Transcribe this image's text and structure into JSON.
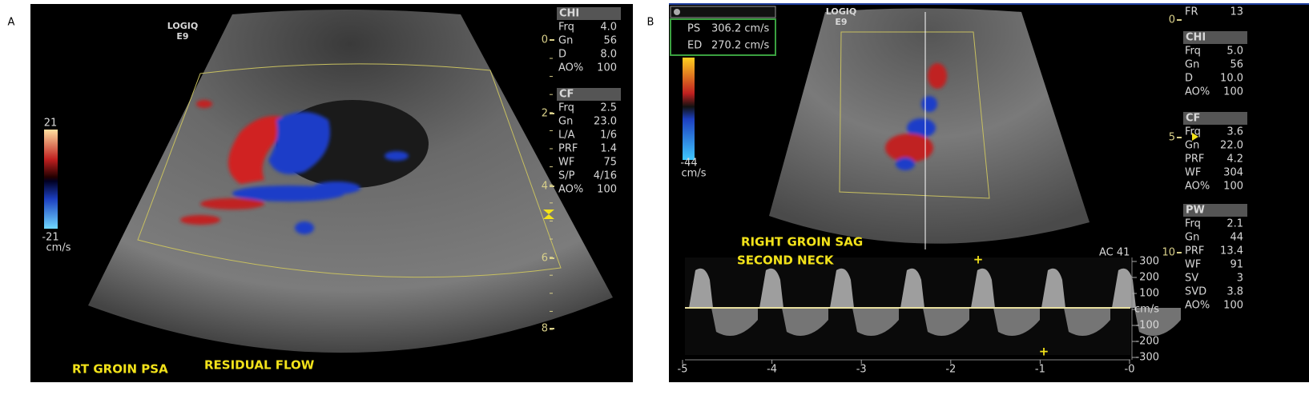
{
  "panel_a": {
    "label": "A",
    "logo": [
      "LOGIQ",
      "E9"
    ],
    "color_scale": {
      "max": "21",
      "min": "-21",
      "unit": "cm/s"
    },
    "depth_marks": [
      "0",
      "2",
      "4",
      "6",
      "8"
    ],
    "settings": [
      {
        "header": "CHI",
        "rows": [
          [
            "Frq",
            "4.0"
          ],
          [
            "Gn",
            "56"
          ],
          [
            "D",
            "8.0"
          ],
          [
            "AO%",
            "100"
          ]
        ]
      },
      {
        "header": "CF",
        "rows": [
          [
            "Frq",
            "2.5"
          ],
          [
            "Gn",
            "23.0"
          ],
          [
            "L/A",
            "1/6"
          ],
          [
            "PRF",
            "1.4"
          ],
          [
            "WF",
            "75"
          ],
          [
            "S/P",
            "4/16"
          ],
          [
            "AO%",
            "100"
          ]
        ]
      }
    ],
    "captions": [
      "RT GROIN PSA",
      "RESIDUAL FLOW"
    ]
  },
  "panel_b": {
    "label": "B",
    "logo": [
      "LOGIQ",
      "E9"
    ],
    "measurements": [
      [
        "PS",
        "306.2 cm/s"
      ],
      [
        "ED",
        "270.2 cm/s"
      ]
    ],
    "color_scale": {
      "min": "-44",
      "unit": "cm/s"
    },
    "frame_rate": [
      "FR",
      "13"
    ],
    "depth_marks": [
      "0",
      "5",
      "10"
    ],
    "settings": [
      {
        "header": "CHI",
        "rows": [
          [
            "Frq",
            "5.0"
          ],
          [
            "Gn",
            "56"
          ],
          [
            "D",
            "10.0"
          ],
          [
            "AO%",
            "100"
          ]
        ]
      },
      {
        "header": "CF",
        "rows": [
          [
            "Frq",
            "3.6"
          ],
          [
            "Gn",
            "22.0"
          ],
          [
            "PRF",
            "4.2"
          ],
          [
            "WF",
            "304"
          ],
          [
            "AO%",
            "100"
          ]
        ]
      },
      {
        "header": "PW",
        "rows": [
          [
            "Frq",
            "2.1"
          ],
          [
            "Gn",
            "44"
          ],
          [
            "PRF",
            "13.4"
          ],
          [
            "WF",
            "91"
          ],
          [
            "SV",
            "3"
          ],
          [
            "SVD",
            "3.8"
          ],
          [
            "AO%",
            "100"
          ]
        ]
      }
    ],
    "captions": [
      "RIGHT GROIN SAG",
      "SECOND NECK"
    ],
    "doppler": {
      "angle_correction": "AC 41",
      "velocity_labels": [
        "300",
        "200",
        "100",
        "cm/s",
        "-100",
        "-200",
        "-300"
      ],
      "time_labels": [
        "-5",
        "-4",
        "-3",
        "-2",
        "-1",
        "-0"
      ]
    }
  }
}
